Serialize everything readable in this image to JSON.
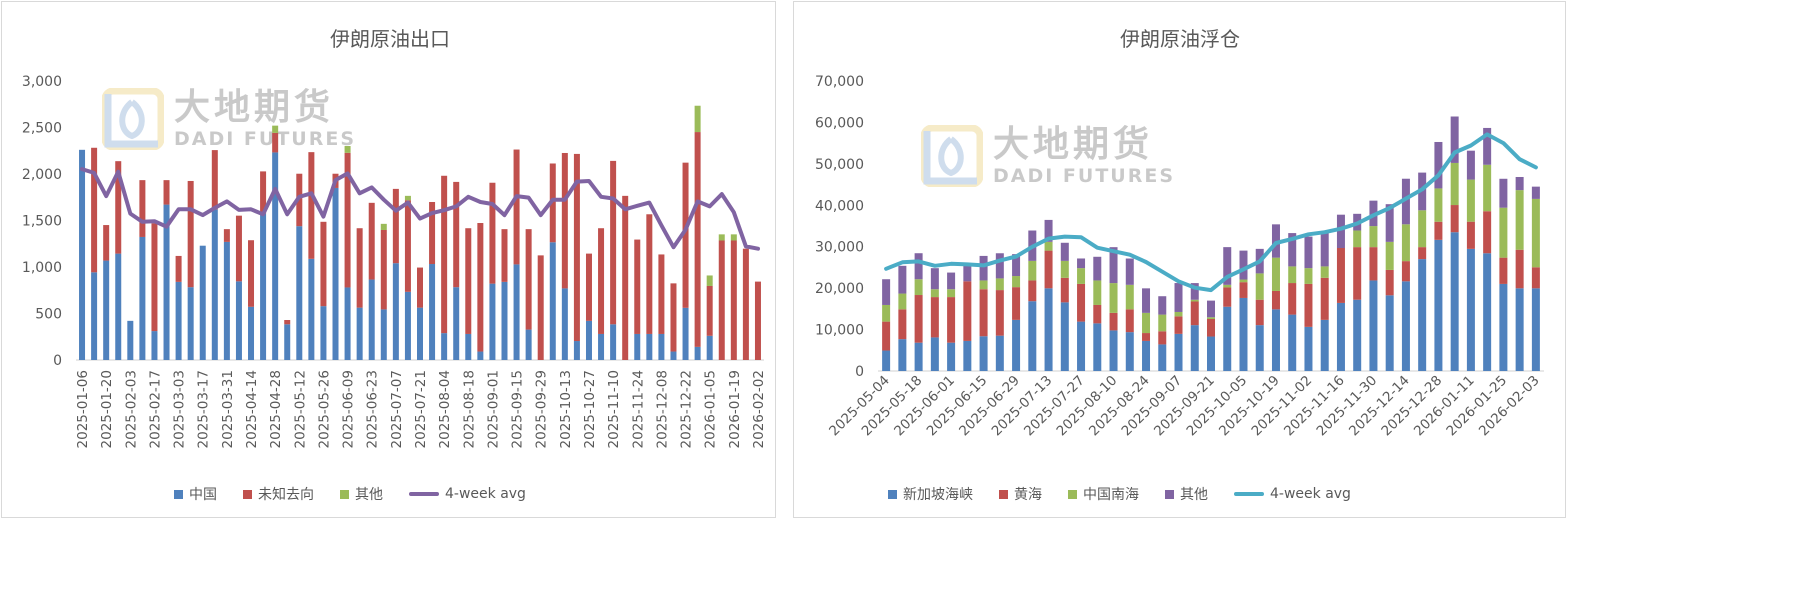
{
  "colors": {
    "blue": "#4F81BD",
    "red": "#C0504D",
    "green": "#9BBB59",
    "purple": "#8064A2",
    "teal": "#4BACC6"
  },
  "watermark": {
    "cn": "大地期货",
    "en": "DADI FUTURES"
  },
  "chart_data": [
    {
      "type": "bar",
      "stacked": true,
      "title": "伊朗原油出口",
      "xlabel": "",
      "ylabel": "",
      "ylim": [
        0,
        3000
      ],
      "yticks": [
        0,
        500,
        1000,
        1500,
        2000,
        2500,
        3000
      ],
      "ytick_labels": [
        "0",
        "500",
        "1,000",
        "1,500",
        "2,000",
        "2,500",
        "3,000"
      ],
      "grid": false,
      "legend_position": "bottom",
      "x_labels": [
        "2025-01-06",
        "",
        "2025-01-20",
        "",
        "2025-02-03",
        "",
        "2025-02-17",
        "",
        "2025-03-03",
        "",
        "2025-03-17",
        "",
        "2025-03-31",
        "",
        "2025-04-14",
        "",
        "2025-04-28",
        "",
        "2025-05-12",
        "",
        "2025-05-26",
        "",
        "2025-06-09",
        "",
        "2025-06-23",
        "",
        "2025-07-07",
        "",
        "2025-07-21",
        "",
        "2025-08-04",
        "",
        "2025-08-18",
        "",
        "2025-09-01",
        "",
        "2025-09-15",
        "",
        "2025-09-29",
        "",
        "2025-10-13",
        "",
        "2025-10-27",
        "",
        "2025-11-10",
        "",
        "2025-11-24",
        "",
        "2025-12-08",
        "",
        "2025-12-22",
        "",
        "2026-01-05",
        "",
        "2026-01-19",
        "",
        "2026-02-02"
      ],
      "series": [
        {
          "name": "中国",
          "type": "bar",
          "color": "#4F81BD",
          "values": [
            2260,
            943,
            1069,
            1144,
            421,
            1323,
            311,
            1671,
            840,
            783,
            1229,
            1620,
            1270,
            846,
            572,
            1573,
            2232,
            384,
            1439,
            1088,
            579,
            1850,
            780,
            563,
            865,
            544,
            1041,
            733,
            563,
            1032,
            289,
            783,
            280,
            91,
            821,
            840,
            1028,
            327,
            0,
            1266,
            770,
            204,
            421,
            280,
            384,
            0,
            280,
            280,
            280,
            91,
            561,
            141,
            260,
            0,
            0,
            0,
            0
          ]
        },
        {
          "name": "未知去向",
          "type": "bar",
          "color": "#C0504D",
          "values": [
            0,
            1339,
            382,
            994,
            0,
            611,
            1159,
            263,
            279,
            1142,
            0,
            637,
            137,
            706,
            716,
            455,
            210,
            46,
            564,
            1147,
            907,
            153,
            1448,
            854,
            825,
            854,
            799,
            985,
            431,
            667,
            1692,
            1132,
            1137,
            1382,
            1085,
            567,
            1235,
            1080,
            1125,
            847,
            1456,
            2012,
            723,
            1137,
            1757,
            1765,
            1015,
            1287,
            855,
            733,
            1561,
            2310,
            536,
            1285,
            1285,
            1197,
            843
          ]
        },
        {
          "name": "其他",
          "type": "bar",
          "color": "#9BBB59",
          "values": [
            0,
            0,
            0,
            0,
            0,
            0,
            0,
            0,
            0,
            0,
            0,
            0,
            0,
            0,
            0,
            0,
            78,
            0,
            0,
            0,
            0,
            0,
            73,
            0,
            0,
            66,
            0,
            47,
            0,
            0,
            0,
            0,
            0,
            0,
            0,
            0,
            0,
            0,
            0,
            0,
            0,
            0,
            0,
            0,
            0,
            0,
            0,
            0,
            0,
            0,
            0,
            283,
            113,
            66,
            66,
            0,
            0
          ]
        },
        {
          "name": "4-week avg",
          "type": "line",
          "color": "#8064A2",
          "values": [
            2053,
            2012,
            1762,
            2025,
            1574,
            1486,
            1492,
            1433,
            1620,
            1620,
            1558,
            1636,
            1705,
            1614,
            1620,
            1567,
            1840,
            1567,
            1755,
            1793,
            1542,
            1934,
            2006,
            1793,
            1856,
            1724,
            1605,
            1693,
            1520,
            1580,
            1611,
            1652,
            1755,
            1699,
            1677,
            1558,
            1762,
            1746,
            1558,
            1724,
            1724,
            1918,
            1925,
            1755,
            1737,
            1620,
            1658,
            1693,
            1448,
            1213,
            1401,
            1705,
            1652,
            1784,
            1589,
            1222,
            1197
          ]
        }
      ]
    },
    {
      "type": "bar",
      "stacked": true,
      "title": "伊朗原油浮仓",
      "xlabel": "",
      "ylabel": "",
      "ylim": [
        0,
        70000
      ],
      "yticks": [
        0,
        10000,
        20000,
        30000,
        40000,
        50000,
        60000,
        70000
      ],
      "ytick_labels": [
        "0",
        "10,000",
        "20,000",
        "30,000",
        "40,000",
        "50,000",
        "60,000",
        "70,000"
      ],
      "grid": false,
      "legend_position": "bottom",
      "x_labels": [
        "2025-05-04",
        "",
        "2025-05-18",
        "",
        "2025-06-01",
        "",
        "2025-06-15",
        "",
        "2025-06-29",
        "",
        "2025-07-13",
        "",
        "2025-07-27",
        "",
        "2025-08-10",
        "",
        "2025-08-24",
        "",
        "2025-09-07",
        "",
        "2025-09-21",
        "",
        "2025-10-05",
        "",
        "2025-10-19",
        "",
        "2025-11-02",
        "",
        "2025-11-16",
        "",
        "2025-11-30",
        "",
        "2025-12-14",
        "",
        "2025-12-28",
        "",
        "2026-01-11",
        "",
        "2026-01-25",
        "",
        "2026-02-03"
      ],
      "series": [
        {
          "name": "新加坡海峡",
          "type": "bar",
          "color": "#4F81BD",
          "values": [
            4940,
            7690,
            6840,
            8110,
            6840,
            7260,
            8390,
            8530,
            12340,
            16850,
            19960,
            16570,
            11920,
            11500,
            9800,
            9380,
            7260,
            6420,
            8960,
            11070,
            8320,
            15510,
            17630,
            11070,
            14880,
            13610,
            10650,
            12340,
            16430,
            17210,
            21860,
            18270,
            21650,
            27010,
            31660,
            33500,
            29480,
            28420,
            21020,
            19960,
            19960
          ]
        },
        {
          "name": "黄海",
          "type": "bar",
          "color": "#C0504D",
          "values": [
            6980,
            7190,
            11500,
            9730,
            11000,
            14390,
            11350,
            11000,
            7900,
            5010,
            9100,
            5920,
            9100,
            4440,
            4230,
            5500,
            1900,
            3170,
            4230,
            5710,
            4230,
            4660,
            3810,
            6140,
            4440,
            7620,
            10370,
            10160,
            13260,
            12690,
            8040,
            6130,
            4870,
            2890,
            4370,
            6560,
            6560,
            10150,
            6340,
            9310,
            5080
          ]
        },
        {
          "name": "中国南海",
          "type": "bar",
          "color": "#9BBB59",
          "values": [
            4020,
            3810,
            3810,
            1900,
            1900,
            0,
            2120,
            2820,
            2680,
            4720,
            2120,
            4090,
            3810,
            5920,
            7190,
            5920,
            4870,
            4020,
            1060,
            420,
            420,
            630,
            640,
            6350,
            8040,
            4020,
            3810,
            2750,
            0,
            4020,
            5080,
            6770,
            8890,
            8890,
            8040,
            10160,
            10160,
            11210,
            12060,
            14390,
            16500
          ]
        },
        {
          "name": "其他",
          "type": "bar",
          "color": "#8064A2",
          "values": [
            6210,
            6700,
            6280,
            5080,
            4020,
            3740,
            5920,
            6070,
            5290,
            7330,
            5290,
            4370,
            2330,
            5710,
            8670,
            6350,
            5920,
            4440,
            6980,
            4020,
            4020,
            9100,
            6980,
            5920,
            8040,
            8040,
            7620,
            8040,
            8040,
            4020,
            6140,
            9100,
            11000,
            9100,
            11210,
            11210,
            6980,
            8890,
            6980,
            3170,
            2960
          ]
        },
        {
          "name": "4-week avg",
          "type": "line",
          "color": "#4BACC6",
          "values": [
            24680,
            26230,
            26450,
            25390,
            25880,
            25740,
            25500,
            26660,
            27640,
            29970,
            31950,
            32440,
            32300,
            29760,
            28910,
            28070,
            26300,
            23980,
            21650,
            20100,
            19530,
            22710,
            24540,
            26450,
            30890,
            31880,
            33000,
            33500,
            34340,
            35610,
            37590,
            39350,
            41610,
            43860,
            47250,
            52750,
            54440,
            57120,
            55010,
            51130,
            49150
          ]
        }
      ]
    }
  ]
}
